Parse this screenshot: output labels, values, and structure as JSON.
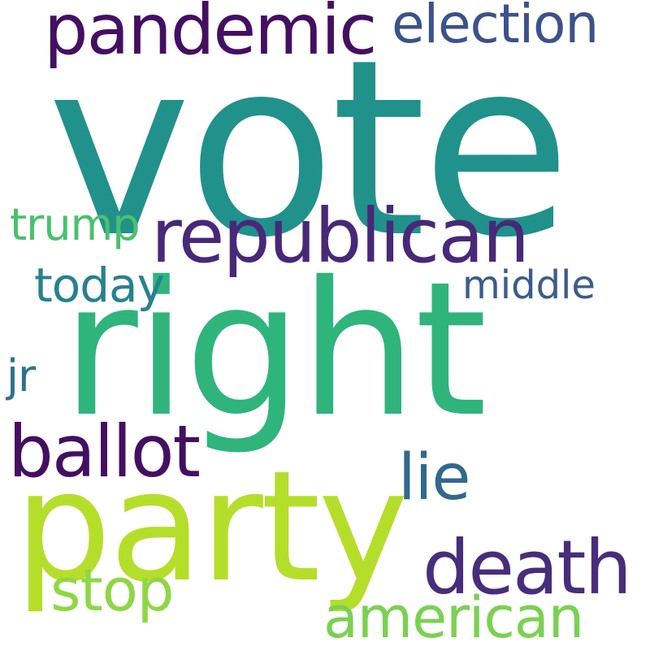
{
  "background_color": "#ffffff",
  "words": [
    {
      "key": "vote",
      "text": "vote",
      "color": "#21918c"
    },
    {
      "key": "right",
      "text": "right",
      "color": "#2fb47c"
    },
    {
      "key": "party",
      "text": "party",
      "color": "#b5de2b"
    },
    {
      "key": "republican",
      "text": "republican",
      "color": "#482878"
    },
    {
      "key": "pandemic",
      "text": "pandemic",
      "color": "#440f62"
    },
    {
      "key": "death",
      "text": "death",
      "color": "#472d7b"
    },
    {
      "key": "ballot",
      "text": "ballot",
      "color": "#440f62"
    },
    {
      "key": "election",
      "text": "election",
      "color": "#3b528b"
    },
    {
      "key": "lie",
      "text": "lie",
      "color": "#31688e"
    },
    {
      "key": "stop",
      "text": "stop",
      "color": "#8fd744"
    },
    {
      "key": "american",
      "text": "american",
      "color": "#7ad151"
    },
    {
      "key": "trump",
      "text": "trump",
      "color": "#4ac16d"
    },
    {
      "key": "today",
      "text": "today",
      "color": "#26828e"
    },
    {
      "key": "middle",
      "text": "middle",
      "color": "#3b5c8b"
    },
    {
      "key": "jr",
      "text": "jr",
      "color": "#2c728e"
    }
  ]
}
